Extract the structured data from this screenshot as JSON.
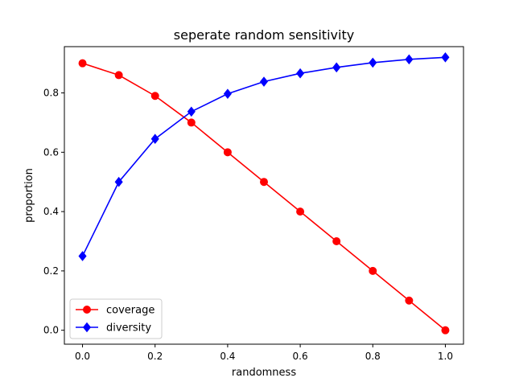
{
  "chart_data": {
    "type": "line",
    "title": "seperate random sensitivity",
    "xlabel": "randomness",
    "ylabel": "proportion",
    "x": [
      0.0,
      0.1,
      0.2,
      0.3,
      0.4,
      0.5,
      0.6,
      0.7,
      0.8,
      0.9,
      1.0
    ],
    "xlim": [
      -0.05,
      1.05
    ],
    "ylim": [
      -0.047,
      0.956
    ],
    "xticks": [
      0.0,
      0.2,
      0.4,
      0.6,
      0.8,
      1.0
    ],
    "xtick_labels": [
      "0.0",
      "0.2",
      "0.4",
      "0.6",
      "0.8",
      "1.0"
    ],
    "yticks": [
      0.0,
      0.2,
      0.4,
      0.6,
      0.8
    ],
    "ytick_labels": [
      "0.0",
      "0.2",
      "0.4",
      "0.6",
      "0.8"
    ],
    "grid": false,
    "legend_position": "lower-left",
    "series": [
      {
        "name": "coverage",
        "color": "#ff0000",
        "marker": "circle",
        "values": [
          0.9,
          0.86,
          0.79,
          0.7,
          0.6,
          0.5,
          0.4,
          0.3,
          0.2,
          0.1,
          0.0
        ]
      },
      {
        "name": "diversity",
        "color": "#0000ff",
        "marker": "diamond",
        "values": [
          0.25,
          0.5,
          0.645,
          0.737,
          0.797,
          0.838,
          0.866,
          0.886,
          0.902,
          0.913,
          0.92
        ]
      }
    ]
  }
}
